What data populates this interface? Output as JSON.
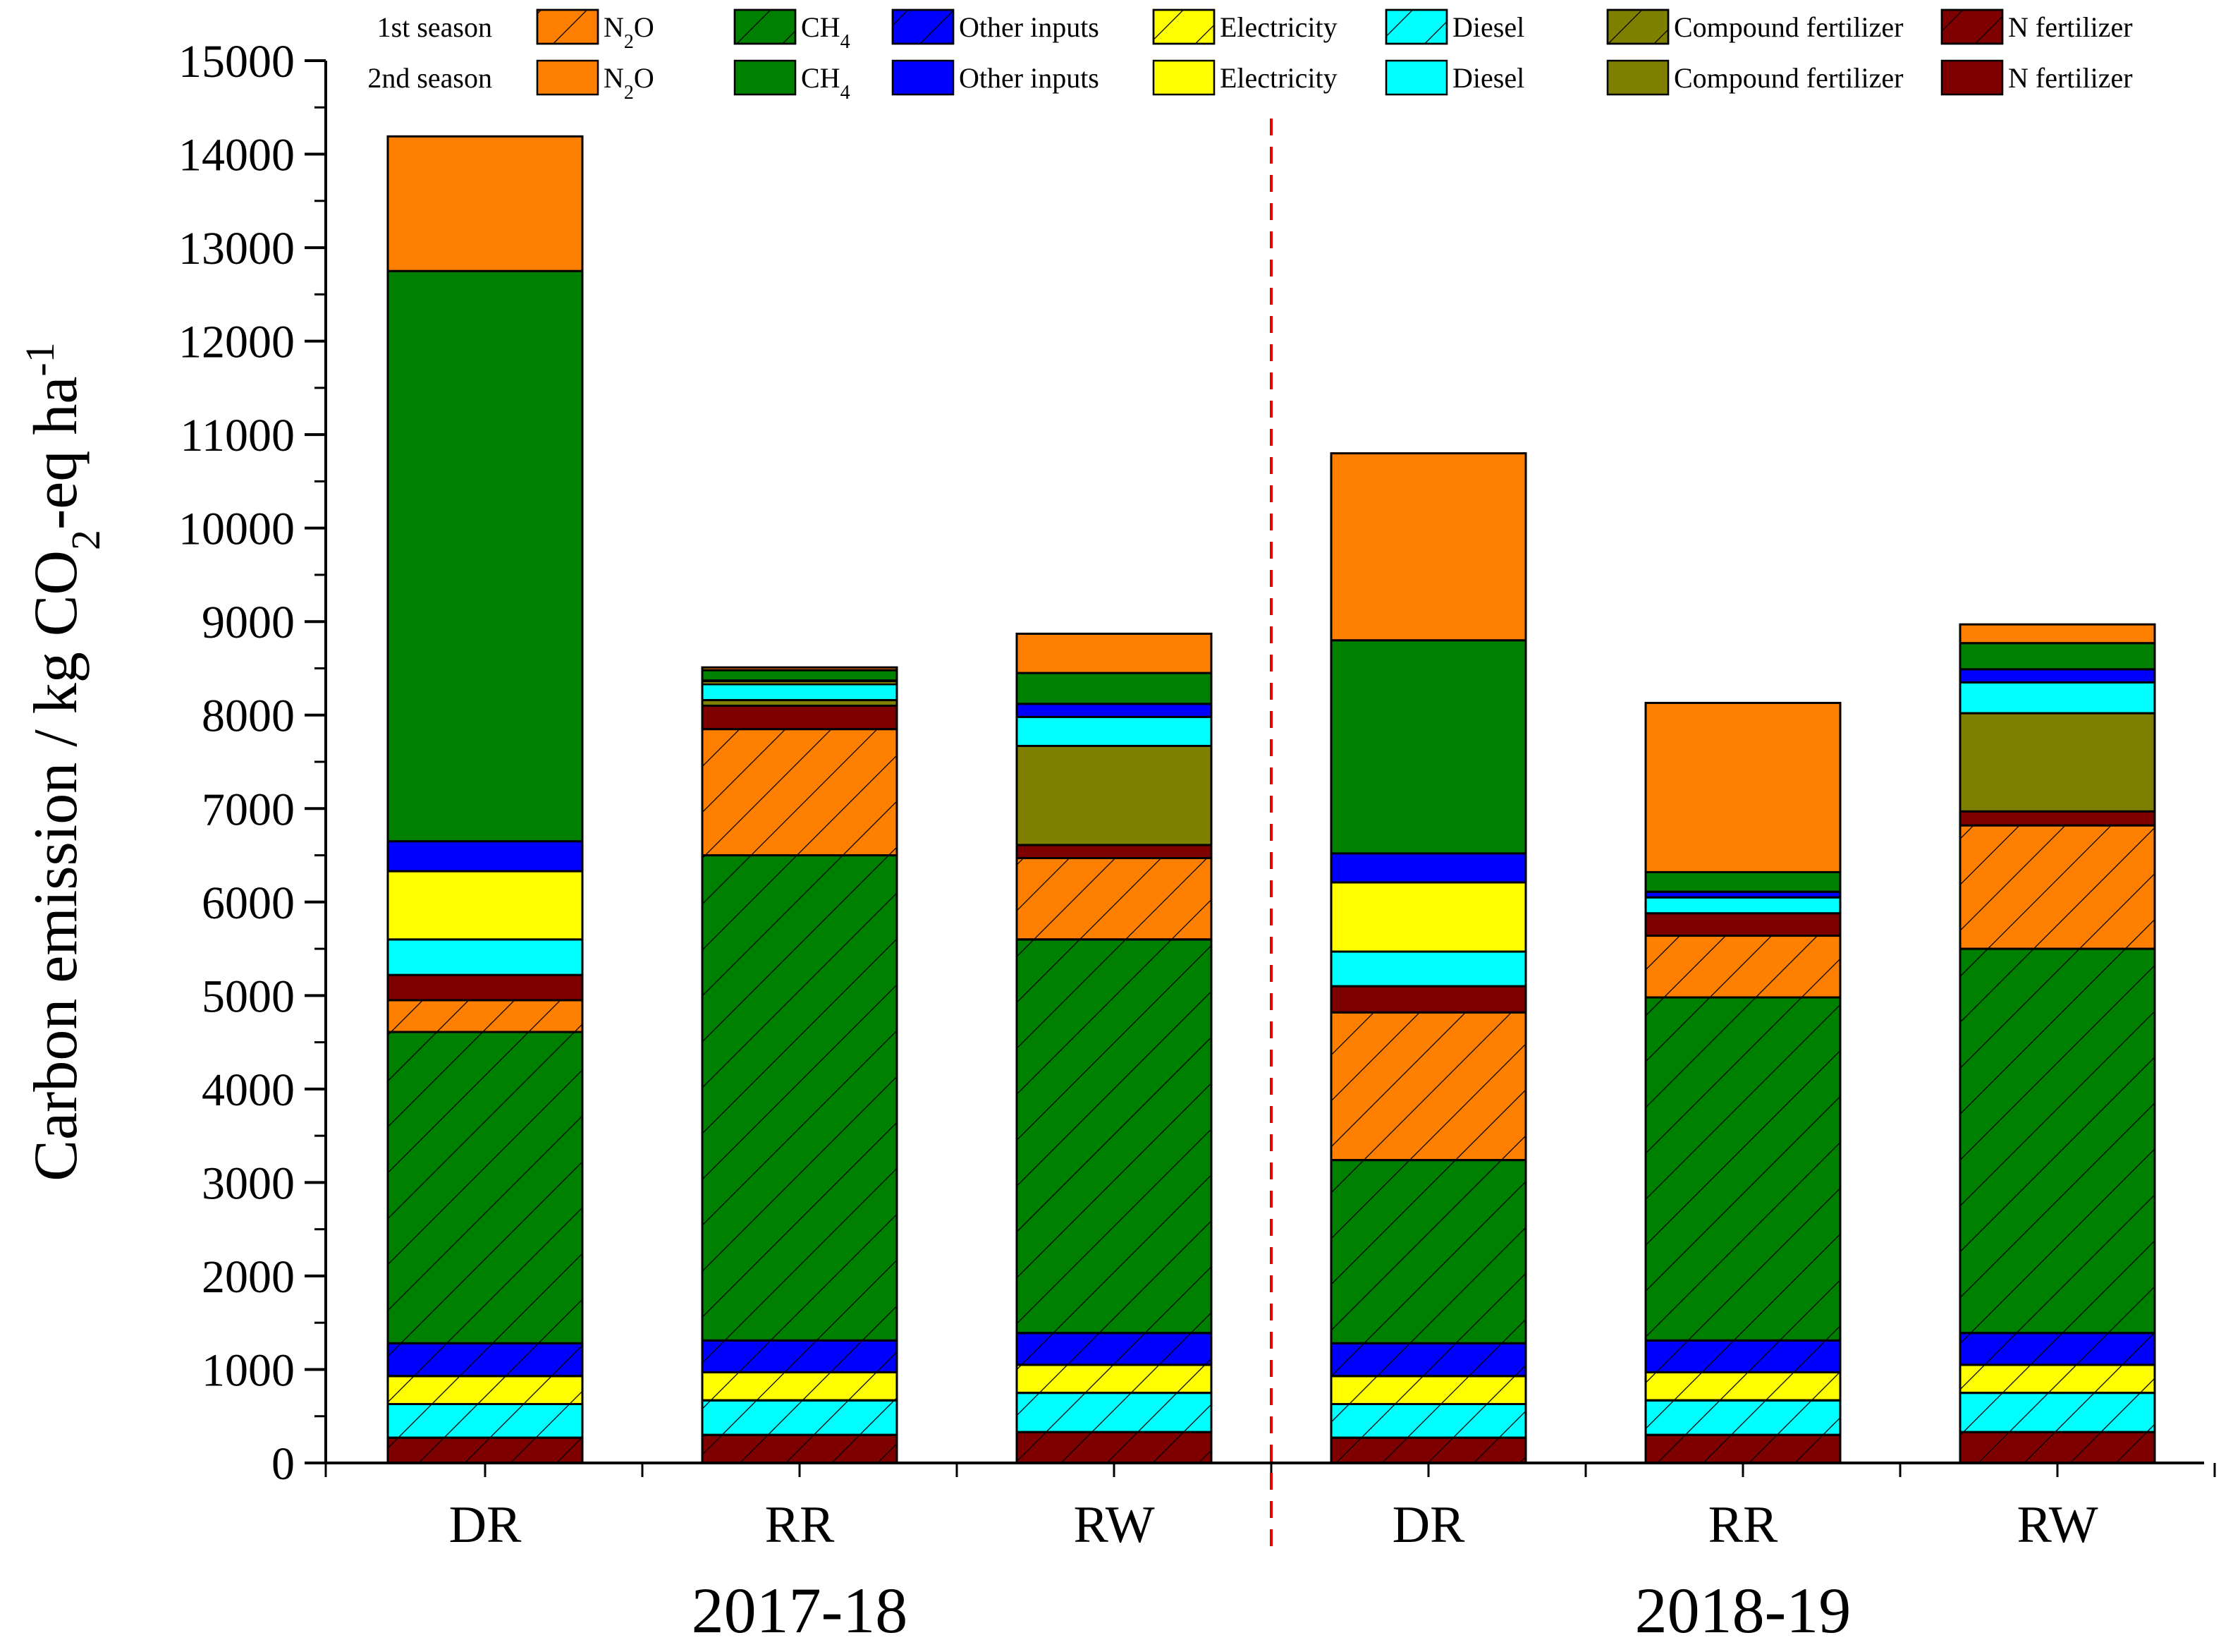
{
  "chart_data": {
    "type": "bar",
    "stacked": true,
    "title": "",
    "ylabel": "Carbon emission / kg CO2-eq ha-1",
    "ylabel_parts": {
      "main": "Carbon emission / kg CO",
      "sub": "2",
      "rest": "-eq ha",
      "sup": "-1"
    },
    "ylim": [
      0,
      15000
    ],
    "yticks": [
      0,
      1000,
      2000,
      3000,
      4000,
      5000,
      6000,
      7000,
      8000,
      9000,
      10000,
      11000,
      12000,
      13000,
      14000,
      15000
    ],
    "categories": [
      "DR",
      "RR",
      "RW",
      "DR",
      "RR",
      "RW"
    ],
    "groups": [
      {
        "label": "2017-18",
        "categories": [
          0,
          1,
          2
        ]
      },
      {
        "label": "2018-19",
        "categories": [
          3,
          4,
          5
        ]
      }
    ],
    "legend": {
      "rows": [
        {
          "label": "1st season",
          "pattern": "hatched"
        },
        {
          "label": "2nd season",
          "pattern": "solid"
        }
      ],
      "entries": [
        {
          "key": "N2O",
          "text": "N",
          "sub": "2",
          "after": "O"
        },
        {
          "key": "CH4",
          "text": "CH",
          "sub": "4",
          "after": ""
        },
        {
          "key": "Other inputs",
          "text": "Other inputs",
          "sub": "",
          "after": ""
        },
        {
          "key": "Electricity",
          "text": "Electricity",
          "sub": "",
          "after": ""
        },
        {
          "key": "Diesel",
          "text": "Diesel",
          "sub": "",
          "after": ""
        },
        {
          "key": "Compound fertilizer",
          "text": "Compound fertilizer",
          "sub": "",
          "after": ""
        },
        {
          "key": "N fertilizer",
          "text": "N fertilizer",
          "sub": "",
          "after": ""
        }
      ]
    },
    "colors": {
      "N fertilizer": "#7f0000",
      "Compound fertilizer": "#808000",
      "Diesel": "#00ffff",
      "Electricity": "#ffff00",
      "Other inputs": "#0000ff",
      "CH4": "#008000",
      "N2O": "#ff8000"
    },
    "stack_order": [
      {
        "component": "N fertilizer",
        "season": "1st season"
      },
      {
        "component": "Compound fertilizer",
        "season": "1st season"
      },
      {
        "component": "Diesel",
        "season": "1st season"
      },
      {
        "component": "Electricity",
        "season": "1st season"
      },
      {
        "component": "Other inputs",
        "season": "1st season"
      },
      {
        "component": "CH4",
        "season": "1st season"
      },
      {
        "component": "N2O",
        "season": "1st season"
      },
      {
        "component": "N fertilizer",
        "season": "2nd season"
      },
      {
        "component": "Compound fertilizer",
        "season": "2nd season"
      },
      {
        "component": "Diesel",
        "season": "2nd season"
      },
      {
        "component": "Electricity",
        "season": "2nd season"
      },
      {
        "component": "Other inputs",
        "season": "2nd season"
      },
      {
        "component": "CH4",
        "season": "2nd season"
      },
      {
        "component": "N2O",
        "season": "2nd season"
      }
    ],
    "series": [
      {
        "name": "N fertilizer (1st season)",
        "values": [
          270,
          300,
          330,
          270,
          300,
          330
        ]
      },
      {
        "name": "Compound fertilizer (1st season)",
        "values": [
          0,
          0,
          0,
          0,
          0,
          0
        ]
      },
      {
        "name": "Diesel (1st season)",
        "values": [
          360,
          370,
          420,
          360,
          370,
          420
        ]
      },
      {
        "name": "Electricity (1st season)",
        "values": [
          300,
          300,
          300,
          300,
          300,
          300
        ]
      },
      {
        "name": "Other inputs (1st season)",
        "values": [
          350,
          340,
          340,
          350,
          340,
          340
        ]
      },
      {
        "name": "CH4 (1st season)",
        "values": [
          3330,
          5190,
          4210,
          1960,
          3670,
          4110
        ]
      },
      {
        "name": "N2O (1st season)",
        "values": [
          340,
          1350,
          870,
          1580,
          660,
          1320
        ]
      },
      {
        "name": "N fertilizer (2nd season)",
        "values": [
          270,
          250,
          140,
          280,
          240,
          150
        ]
      },
      {
        "name": "Compound fertilizer (2nd season)",
        "values": [
          0,
          60,
          1060,
          0,
          0,
          1050
        ]
      },
      {
        "name": "Diesel (2nd season)",
        "values": [
          380,
          170,
          310,
          370,
          170,
          330
        ]
      },
      {
        "name": "Electricity (2nd season)",
        "values": [
          730,
          30,
          0,
          740,
          0,
          0
        ]
      },
      {
        "name": "Other inputs (2nd season)",
        "values": [
          320,
          10,
          140,
          310,
          60,
          140
        ]
      },
      {
        "name": "CH4 (2nd season)",
        "values": [
          6100,
          110,
          330,
          2280,
          210,
          280
        ]
      },
      {
        "name": "N2O (2nd season)",
        "values": [
          1440,
          30,
          420,
          2000,
          1810,
          200
        ]
      }
    ],
    "annotations": [
      {
        "type": "vertical-dashed-line",
        "between_categories": [
          2,
          3
        ],
        "color": "#e00000"
      }
    ]
  }
}
